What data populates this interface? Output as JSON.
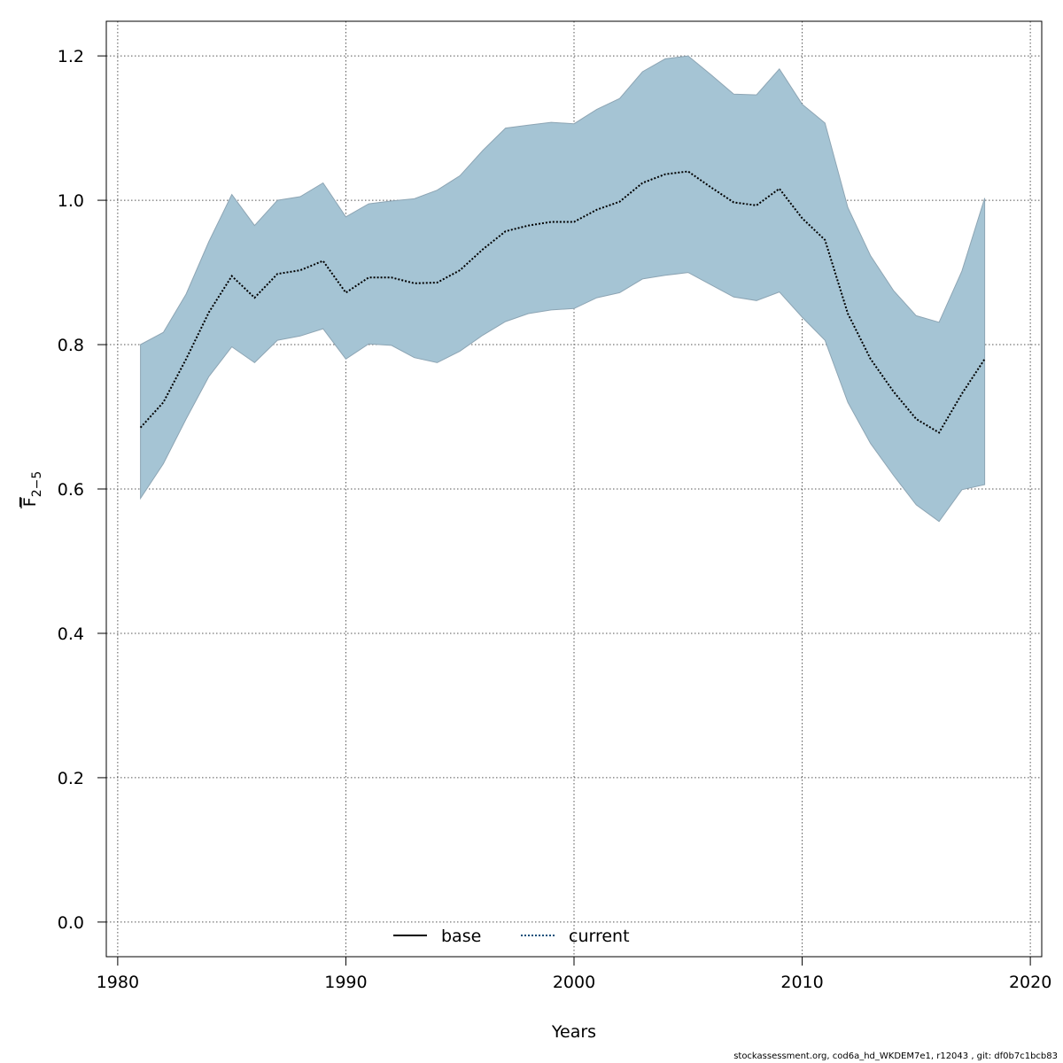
{
  "chart_data": {
    "type": "line",
    "xlabel": "Years",
    "ylabel": "F",
    "ylabel_subscript": "2−5",
    "xlim": [
      1979.5,
      2020.5
    ],
    "ylim": [
      -0.048,
      1.248
    ],
    "x_ticks": [
      1980,
      1990,
      2000,
      2010,
      2020
    ],
    "y_ticks": [
      0.0,
      0.2,
      0.4,
      0.6,
      0.8,
      1.0,
      1.2
    ],
    "x_tick_labels": [
      "1980",
      "1990",
      "2000",
      "2010",
      "2020"
    ],
    "y_tick_labels": [
      "0.0",
      "0.2",
      "0.4",
      "0.6",
      "0.8",
      "1.0",
      "1.2"
    ],
    "grid": true,
    "legend_position": "bottom-center",
    "legend": [
      {
        "label": "base",
        "style": "solid",
        "color": "#000000"
      },
      {
        "label": "current",
        "style": "dotted",
        "color": "#0b4f7a"
      }
    ],
    "x": [
      1981,
      1982,
      1983,
      1984,
      1985,
      1986,
      1987,
      1988,
      1989,
      1990,
      1991,
      1992,
      1993,
      1994,
      1995,
      1996,
      1997,
      1998,
      1999,
      2000,
      2001,
      2002,
      2003,
      2004,
      2005,
      2006,
      2007,
      2008,
      2009,
      2010,
      2011,
      2012,
      2013,
      2014,
      2015,
      2016,
      2017,
      2018
    ],
    "series": [
      {
        "name": "current",
        "values": [
          0.685,
          0.72,
          0.78,
          0.845,
          0.895,
          0.865,
          0.898,
          0.903,
          0.916,
          0.872,
          0.893,
          0.893,
          0.885,
          0.886,
          0.903,
          0.932,
          0.957,
          0.965,
          0.97,
          0.97,
          0.987,
          0.998,
          1.024,
          1.036,
          1.04,
          1.018,
          0.997,
          0.993,
          1.016,
          0.975,
          0.945,
          0.843,
          0.78,
          0.735,
          0.697,
          0.678,
          0.732,
          0.78
        ],
        "lower": [
          0.587,
          0.635,
          0.697,
          0.756,
          0.797,
          0.775,
          0.806,
          0.812,
          0.822,
          0.78,
          0.801,
          0.799,
          0.782,
          0.775,
          0.791,
          0.813,
          0.832,
          0.843,
          0.848,
          0.85,
          0.865,
          0.872,
          0.891,
          0.896,
          0.9,
          0.883,
          0.866,
          0.861,
          0.873,
          0.838,
          0.806,
          0.72,
          0.663,
          0.619,
          0.578,
          0.555,
          0.599,
          0.606
        ],
        "upper": [
          0.8,
          0.817,
          0.87,
          0.943,
          1.008,
          0.965,
          1.0,
          1.005,
          1.024,
          0.977,
          0.995,
          0.999,
          1.002,
          1.014,
          1.034,
          1.069,
          1.1,
          1.104,
          1.108,
          1.106,
          1.126,
          1.141,
          1.178,
          1.196,
          1.2,
          1.174,
          1.147,
          1.146,
          1.182,
          1.133,
          1.107,
          0.99,
          0.923,
          0.875,
          0.84,
          0.831,
          0.902,
          1.003
        ]
      }
    ],
    "band_color": "#a5c4d4",
    "band_edge_color": "#8da5b4"
  },
  "footer_text": "stockassessment.org, cod6a_hd_WKDEM7e1, r12043 , git: df0b7c1bcb83"
}
